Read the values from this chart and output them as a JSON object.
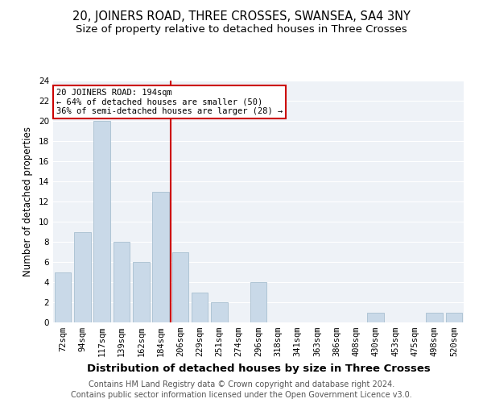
{
  "title": "20, JOINERS ROAD, THREE CROSSES, SWANSEA, SA4 3NY",
  "subtitle": "Size of property relative to detached houses in Three Crosses",
  "xlabel": "Distribution of detached houses by size in Three Crosses",
  "ylabel": "Number of detached properties",
  "categories": [
    "72sqm",
    "94sqm",
    "117sqm",
    "139sqm",
    "162sqm",
    "184sqm",
    "206sqm",
    "229sqm",
    "251sqm",
    "274sqm",
    "296sqm",
    "318sqm",
    "341sqm",
    "363sqm",
    "386sqm",
    "408sqm",
    "430sqm",
    "453sqm",
    "475sqm",
    "498sqm",
    "520sqm"
  ],
  "values": [
    5,
    9,
    20,
    8,
    6,
    13,
    7,
    3,
    2,
    0,
    4,
    0,
    0,
    0,
    0,
    0,
    1,
    0,
    0,
    1,
    1
  ],
  "bar_color": "#c9d9e8",
  "bar_edgecolor": "#a8bfd0",
  "ref_line_color": "#cc0000",
  "annotation_title": "20 JOINERS ROAD: 194sqm",
  "annotation_line1": "← 64% of detached houses are smaller (50)",
  "annotation_line2": "36% of semi-detached houses are larger (28) →",
  "annotation_box_facecolor": "#ffffff",
  "annotation_box_edgecolor": "#cc0000",
  "footer1": "Contains HM Land Registry data © Crown copyright and database right 2024.",
  "footer2": "Contains public sector information licensed under the Open Government Licence v3.0.",
  "ylim": [
    0,
    24
  ],
  "yticks": [
    0,
    2,
    4,
    6,
    8,
    10,
    12,
    14,
    16,
    18,
    20,
    22,
    24
  ],
  "background_color": "#eef2f7",
  "grid_color": "#ffffff",
  "title_fontsize": 10.5,
  "subtitle_fontsize": 9.5,
  "xlabel_fontsize": 9.5,
  "ylabel_fontsize": 8.5,
  "tick_fontsize": 7.5,
  "annotation_fontsize": 7.5,
  "footer_fontsize": 7.0
}
